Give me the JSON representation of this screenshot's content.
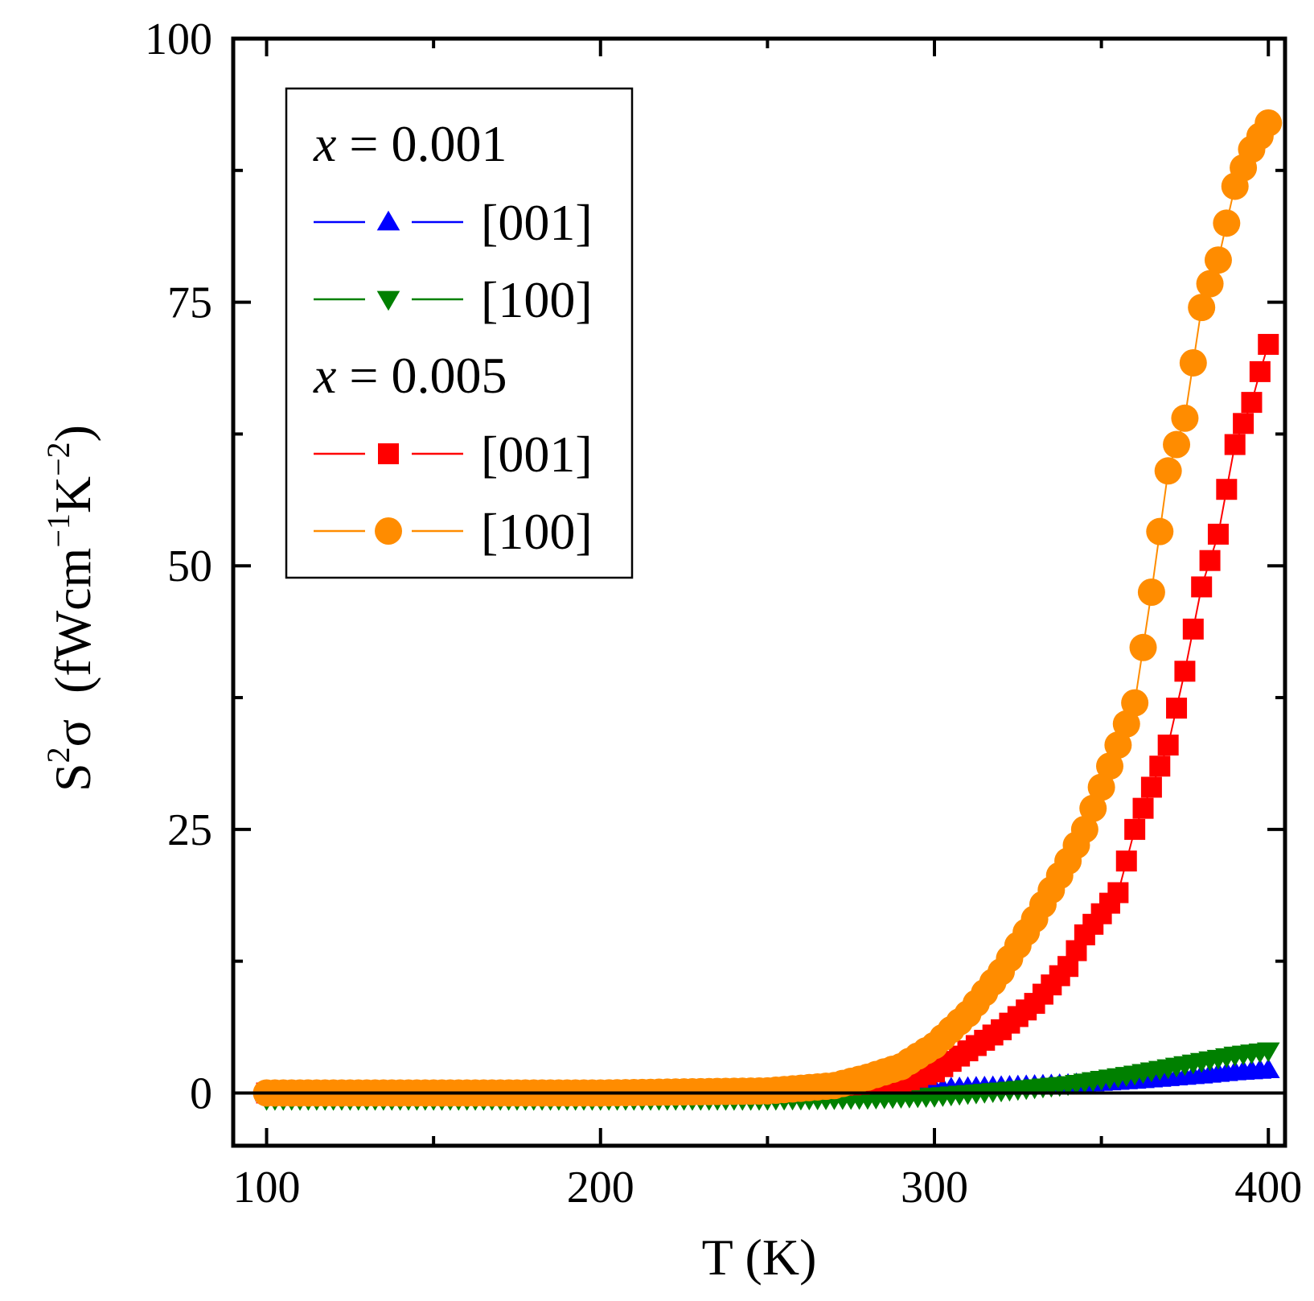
{
  "chart_data": {
    "type": "scatter",
    "title": "",
    "xlabel": "T  (K)",
    "ylabel": {
      "base": "S",
      "base_sup": "2",
      "symbol": "σ",
      "units_open": "  (fWcm",
      "sup1": "−1",
      "units_mid": "K",
      "sup2": "−2",
      "units_close": ")"
    },
    "xlim": [
      90,
      405
    ],
    "ylim": [
      -5,
      100
    ],
    "xticks": [
      100,
      200,
      300,
      400
    ],
    "xticklabels": [
      "100",
      "200",
      "300",
      "400"
    ],
    "yticks": [
      0,
      25,
      50,
      75,
      100
    ],
    "yticklabels": [
      "0",
      "25",
      "50",
      "75",
      "100"
    ],
    "grid": false,
    "legend_position": "top-left",
    "legend_groups": [
      {
        "label_italic": "x",
        "label_rest": " = 0.001",
        "series_indices": [
          0,
          1
        ]
      },
      {
        "label_italic": "x",
        "label_rest": " = 0.005",
        "series_indices": [
          2,
          3
        ]
      }
    ],
    "series": [
      {
        "name": "[001]",
        "group": "x = 0.001",
        "marker": "triangle-up",
        "color": "#0000ff",
        "x": [
          100,
          150,
          200,
          250,
          280,
          300,
          320,
          340,
          360,
          380,
          390,
          400
        ],
        "y": [
          0.0,
          0.1,
          0.2,
          0.3,
          0.3,
          0.4,
          0.6,
          0.8,
          1.2,
          1.7,
          2.0,
          2.2
        ]
      },
      {
        "name": "[100]",
        "group": "x = 0.001",
        "marker": "triangle-down",
        "color": "#008000",
        "x": [
          100,
          150,
          200,
          250,
          280,
          300,
          320,
          340,
          360,
          370,
          380,
          390,
          400
        ],
        "y": [
          -0.6,
          -0.6,
          -0.6,
          -0.6,
          -0.5,
          -0.3,
          0.2,
          0.8,
          1.8,
          2.4,
          3.0,
          3.6,
          4.0
        ]
      },
      {
        "name": "[001]",
        "group": "x = 0.005",
        "marker": "square",
        "color": "#ff0000",
        "x": [
          100,
          150,
          200,
          250,
          270,
          290,
          300,
          310,
          320,
          330,
          340,
          345,
          350,
          355,
          360,
          365,
          370,
          375,
          380,
          385,
          390,
          395,
          398,
          400
        ],
        "y": [
          0.0,
          0.0,
          0.1,
          0.4,
          0.7,
          1.0,
          2.0,
          4.0,
          6.0,
          8.5,
          12.0,
          15.0,
          17.0,
          19.0,
          25.0,
          29.0,
          33.0,
          40.0,
          48.0,
          53.0,
          61.5,
          65.5,
          69.0,
          71.0
        ]
      },
      {
        "name": "[100]",
        "group": "x = 0.005",
        "marker": "circle",
        "color": "#ff8c00",
        "x": [
          100,
          150,
          200,
          250,
          270,
          280,
          290,
          300,
          310,
          320,
          330,
          340,
          345,
          350,
          355,
          360,
          365,
          370,
          375,
          380,
          385,
          390,
          395,
          400
        ],
        "y": [
          0.0,
          0.0,
          0.0,
          0.2,
          0.7,
          1.5,
          2.5,
          4.5,
          7.5,
          11.5,
          16.5,
          22.0,
          25.0,
          29.0,
          33.0,
          37.0,
          47.5,
          59.0,
          64.0,
          74.5,
          79.0,
          86.0,
          89.5,
          92.0
        ]
      }
    ]
  }
}
